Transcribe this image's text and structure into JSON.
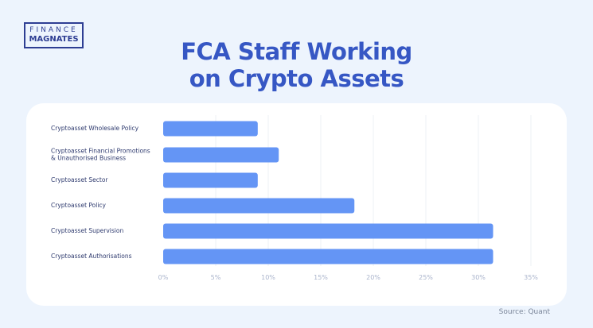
{
  "logo": {
    "line1": "FINANCE",
    "line2": "MAGNATES"
  },
  "source": "Source: Quant",
  "chart_data": {
    "type": "bar",
    "orientation": "horizontal",
    "title": "FCA Staff Working on Crypto Assets",
    "categories": [
      "Cryptoasset Wholesale Policy",
      "Cryptoasset Financial Promotions & Unauthorised Business",
      "Cryptoasset Sector",
      "Cryptoasset Policy",
      "Cryptoasset Supervision",
      "Cryptoasset Authorisations"
    ],
    "values": [
      9.0,
      11.0,
      9.0,
      18.2,
      31.4,
      31.4
    ],
    "xlim": [
      0,
      35
    ],
    "xticks": [
      "0%",
      "5%",
      "10%",
      "15%",
      "20%",
      "25%",
      "30%",
      "35%"
    ],
    "grid": true,
    "bar_color": "#6495f5",
    "title_color": "#3657c4"
  }
}
